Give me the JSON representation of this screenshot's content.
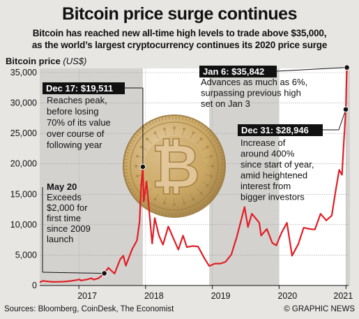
{
  "title": "Bitcoin price surge continues",
  "subtitle_line1": "Bitcoin has reached new all-time high levels to trade above $35,000,",
  "subtitle_line2": "as the world’s largest cryptocurrency continues its 2020 price surge",
  "sources": "Sources: Bloomberg, CoinDesk, The Economist",
  "credit": "© GRAPHIC NEWS",
  "chart_data": {
    "type": "line",
    "ylabel": "Bitcoin price",
    "yunit": "(US$)",
    "ylim": [
      0,
      35000
    ],
    "yticks": [
      0,
      5000,
      10000,
      15000,
      20000,
      25000,
      30000,
      35000
    ],
    "ytick_labels": [
      "0",
      "5,000",
      "10,000",
      "15,000",
      "20,000",
      "25,000",
      "30,000",
      "35,000"
    ],
    "xlim": [
      "2016-06-01",
      "2021-01-15"
    ],
    "xtick_labels": [
      "2017",
      "2018",
      "2019",
      "2020",
      "2021"
    ],
    "xtick_dates": [
      "2017-01-01",
      "2018-01-01",
      "2019-01-01",
      "2020-01-01",
      "2021-01-01"
    ],
    "series": [
      {
        "color": "#e01e26",
        "points": [
          [
            "2016-06-01",
            540
          ],
          [
            "2016-06-18",
            760
          ],
          [
            "2016-07-15",
            660
          ],
          [
            "2016-08-15",
            580
          ],
          [
            "2016-09-15",
            610
          ],
          [
            "2016-10-15",
            640
          ],
          [
            "2016-11-15",
            740
          ],
          [
            "2016-12-20",
            900
          ],
          [
            "2017-01-05",
            1000
          ],
          [
            "2017-01-12",
            810
          ],
          [
            "2017-02-15",
            1000
          ],
          [
            "2017-03-10",
            1180
          ],
          [
            "2017-03-25",
            960
          ],
          [
            "2017-04-20",
            1220
          ],
          [
            "2017-05-20",
            2000
          ],
          [
            "2017-06-11",
            2900
          ],
          [
            "2017-07-15",
            1950
          ],
          [
            "2017-08-15",
            4300
          ],
          [
            "2017-09-01",
            4900
          ],
          [
            "2017-09-15",
            3250
          ],
          [
            "2017-10-20",
            6000
          ],
          [
            "2017-11-15",
            7400
          ],
          [
            "2017-11-29",
            10500
          ],
          [
            "2017-12-07",
            16000
          ],
          [
            "2017-12-17",
            19511
          ],
          [
            "2017-12-22",
            13800
          ],
          [
            "2018-01-06",
            17100
          ],
          [
            "2018-02-06",
            6900
          ],
          [
            "2018-02-20",
            11100
          ],
          [
            "2018-03-15",
            8200
          ],
          [
            "2018-04-06",
            6700
          ],
          [
            "2018-05-05",
            9700
          ],
          [
            "2018-06-29",
            5900
          ],
          [
            "2018-07-25",
            8200
          ],
          [
            "2018-08-15",
            6300
          ],
          [
            "2018-09-15",
            6500
          ],
          [
            "2018-10-15",
            6400
          ],
          [
            "2018-11-20",
            4400
          ],
          [
            "2018-12-15",
            3200
          ],
          [
            "2019-01-15",
            3600
          ],
          [
            "2019-02-15",
            3600
          ],
          [
            "2019-03-15",
            3900
          ],
          [
            "2019-04-15",
            5100
          ],
          [
            "2019-05-15",
            8000
          ],
          [
            "2019-06-26",
            12900
          ],
          [
            "2019-07-15",
            9600
          ],
          [
            "2019-08-05",
            11800
          ],
          [
            "2019-09-15",
            10300
          ],
          [
            "2019-09-25",
            8200
          ],
          [
            "2019-10-26",
            9300
          ],
          [
            "2019-11-25",
            7000
          ],
          [
            "2019-12-17",
            6600
          ],
          [
            "2020-01-15",
            8700
          ],
          [
            "2020-02-13",
            10300
          ],
          [
            "2020-03-12",
            4900
          ],
          [
            "2020-04-15",
            6800
          ],
          [
            "2020-05-15",
            9500
          ],
          [
            "2020-06-15",
            9300
          ],
          [
            "2020-07-15",
            9200
          ],
          [
            "2020-08-15",
            11800
          ],
          [
            "2020-09-15",
            10700
          ],
          [
            "2020-10-15",
            11500
          ],
          [
            "2020-11-05",
            15500
          ],
          [
            "2020-11-25",
            19000
          ],
          [
            "2020-12-10",
            18200
          ],
          [
            "2020-12-20",
            23500
          ],
          [
            "2020-12-31",
            28946
          ],
          [
            "2021-01-03",
            33000
          ],
          [
            "2021-01-06",
            35842
          ]
        ]
      }
    ],
    "shaded_ranges": [
      [
        "2016-06-01",
        "2017-12-17"
      ],
      [
        "2018-12-15",
        "2019-12-31"
      ],
      [
        "2020-12-31",
        "2021-01-06"
      ]
    ],
    "annotations": [
      {
        "label": "Dec 17: $19,511",
        "date": "2017-12-17",
        "value": 19511,
        "text": [
          "Reaches peak,",
          "before losing",
          "70% of its value",
          "over course of",
          "following year"
        ]
      },
      {
        "label": "May 20",
        "date": "2017-05-20",
        "value": 2000,
        "text": [
          "Exceeds",
          "$2,000 for",
          "first time",
          "since 2009",
          "launch"
        ]
      },
      {
        "label": "Jan 6: $35,842",
        "date": "2021-01-06",
        "value": 35842,
        "text": [
          "Advances as much as 6%,",
          "surpassing previous high",
          "set on Jan 3"
        ]
      },
      {
        "label": "Dec 31: $28,946",
        "date": "2020-12-31",
        "value": 28946,
        "text": [
          "Increase of",
          "around 400%",
          "since start of year,",
          "amid heightened",
          "interest from",
          "bigger investors"
        ]
      }
    ],
    "grid": true
  },
  "coin": {
    "gold": "#c9a45c",
    "gold_dark": "#9c7a3b",
    "gold_light": "#e5caa0",
    "symbol": "₿"
  }
}
